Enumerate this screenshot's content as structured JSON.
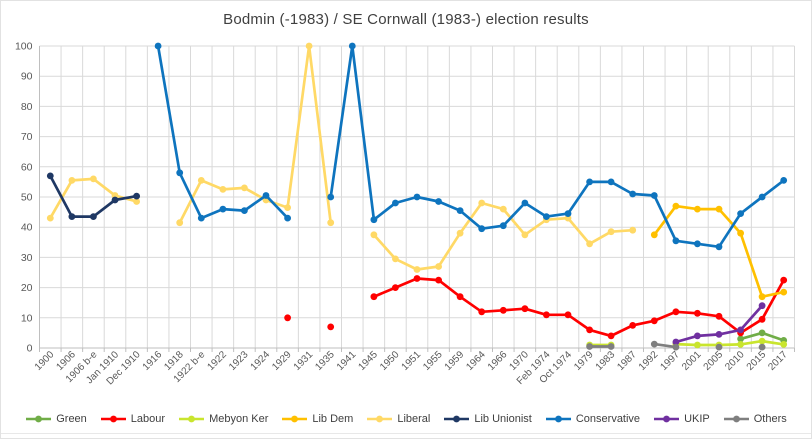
{
  "chart_data": {
    "type": "line",
    "title": "Bodmin (-1983) / SE Cornwall (1983-) election results",
    "xlabel": "",
    "ylabel": "",
    "ylim": [
      0,
      100
    ],
    "y_tick_step": 10,
    "y_tick_labels": [
      "0",
      "10",
      "20",
      "30",
      "40",
      "50",
      "60",
      "70",
      "80",
      "90",
      "100"
    ],
    "grid": true,
    "legend_position": "bottom",
    "categories": [
      "1900",
      "1906",
      "1906 b-e",
      "Jan 1910",
      "Dec 1910",
      "1916",
      "1918",
      "1922 b-e",
      "1922",
      "1923",
      "1924",
      "1929",
      "1931",
      "1935",
      "1941",
      "1945",
      "1950",
      "1951",
      "1955",
      "1959",
      "1964",
      "1966",
      "1970",
      "Feb 1974",
      "Oct 1974",
      "1979",
      "1983",
      "1987",
      "1992",
      "1997",
      "2001",
      "2005",
      "2010",
      "2015",
      "2017"
    ],
    "series": [
      {
        "name": "Green",
        "color": "#70AD47",
        "values": [
          null,
          null,
          null,
          null,
          null,
          null,
          null,
          null,
          null,
          null,
          null,
          null,
          null,
          null,
          null,
          null,
          null,
          null,
          null,
          null,
          null,
          null,
          null,
          null,
          null,
          null,
          null,
          null,
          null,
          null,
          null,
          null,
          3,
          5,
          2.5
        ]
      },
      {
        "name": "Labour",
        "color": "#FF0000",
        "values": [
          null,
          null,
          null,
          null,
          null,
          null,
          null,
          null,
          null,
          null,
          null,
          10,
          null,
          7,
          null,
          17,
          20,
          23,
          22.5,
          17,
          12,
          12.5,
          13,
          11,
          11,
          6,
          4,
          7.5,
          9,
          12,
          11.5,
          10.5,
          5,
          9.5,
          22.5
        ]
      },
      {
        "name": "Mebyon Ker",
        "color": "#C9E52E",
        "values": [
          null,
          null,
          null,
          null,
          null,
          null,
          null,
          null,
          null,
          null,
          null,
          null,
          null,
          null,
          null,
          null,
          null,
          null,
          null,
          null,
          null,
          null,
          null,
          null,
          null,
          1,
          1,
          null,
          null,
          1.3,
          1,
          1,
          1.2,
          2.3,
          1.2
        ]
      },
      {
        "name": "Lib Dem",
        "color": "#FFC000",
        "values": [
          null,
          null,
          null,
          null,
          null,
          null,
          null,
          null,
          null,
          null,
          null,
          null,
          null,
          null,
          null,
          null,
          null,
          null,
          null,
          null,
          null,
          null,
          null,
          null,
          null,
          null,
          null,
          null,
          37.5,
          47,
          46,
          46,
          38,
          17,
          18.5
        ]
      },
      {
        "name": "Liberal",
        "color": "#FFD966",
        "values": [
          43,
          55.5,
          56,
          50.5,
          48.5,
          null,
          41.5,
          55.5,
          52.5,
          53,
          49,
          46.5,
          100,
          41.5,
          null,
          37.5,
          29.5,
          26,
          27,
          38,
          48,
          46,
          37.5,
          42.5,
          43,
          34.5,
          38.5,
          39,
          null,
          null,
          null,
          null,
          null,
          null,
          null
        ]
      },
      {
        "name": "Lib Unionist",
        "color": "#1F3864",
        "values": [
          57,
          43.5,
          43.5,
          49,
          50.3,
          null,
          null,
          null,
          null,
          null,
          null,
          null,
          null,
          null,
          null,
          null,
          null,
          null,
          null,
          null,
          null,
          null,
          null,
          null,
          null,
          null,
          null,
          null,
          null,
          null,
          null,
          null,
          null,
          null,
          null
        ]
      },
      {
        "name": "Conservative",
        "color": "#0E74BE",
        "values": [
          null,
          null,
          null,
          null,
          null,
          100,
          58,
          43,
          46,
          45.5,
          50.5,
          43,
          null,
          50,
          100,
          42.5,
          48,
          50,
          48.5,
          45.5,
          39.5,
          40.5,
          48,
          43.5,
          44.5,
          55,
          55,
          51,
          50.5,
          35.5,
          34.5,
          33.5,
          44.5,
          50,
          55.5
        ]
      },
      {
        "name": "UKIP",
        "color": "#7030A0",
        "values": [
          null,
          null,
          null,
          null,
          null,
          null,
          null,
          null,
          null,
          null,
          null,
          null,
          null,
          null,
          null,
          null,
          null,
          null,
          null,
          null,
          null,
          null,
          null,
          null,
          null,
          null,
          null,
          null,
          null,
          2,
          4,
          4.5,
          6,
          14,
          null
        ]
      },
      {
        "name": "Others",
        "color": "#7F7F7F",
        "values": [
          null,
          null,
          null,
          null,
          null,
          null,
          null,
          null,
          null,
          null,
          null,
          null,
          null,
          null,
          null,
          null,
          null,
          null,
          null,
          null,
          null,
          null,
          null,
          null,
          null,
          0.5,
          0.5,
          null,
          1.3,
          0.3,
          null,
          0.3,
          null,
          0.3,
          null
        ]
      }
    ]
  },
  "style": {
    "gridline_color": "#D9D9D9",
    "axis_line_color": "#BFBFBF",
    "tick_label_color": "#595959",
    "title_color": "#404040",
    "legend_text_color": "#404040"
  }
}
